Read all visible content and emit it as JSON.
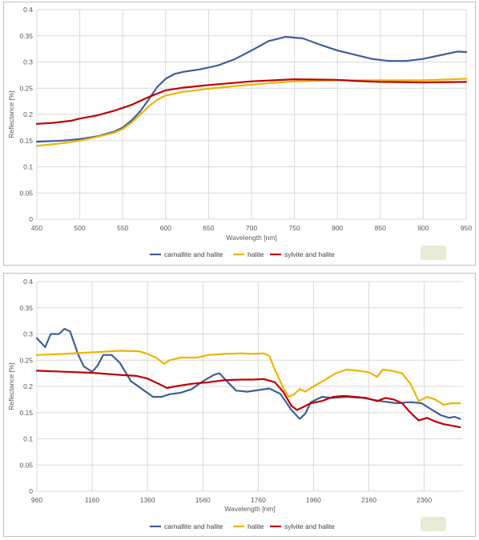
{
  "chart_data": [
    {
      "type": "line",
      "title": "",
      "xlabel": "Wavelength [nm]",
      "ylabel": "Reflectance [%]",
      "xlim": [
        450,
        950
      ],
      "ylim": [
        0,
        0.4
      ],
      "x_ticks": [
        "450",
        "500",
        "550",
        "600",
        "650",
        "700",
        "750",
        "800",
        "850",
        "900",
        "950"
      ],
      "y_ticks": [
        "0",
        "0.05",
        "0.1",
        "0.15",
        "0.2",
        "0.25",
        "0.3",
        "0.35",
        "0.4"
      ],
      "grid": true,
      "legend_position": "bottom",
      "series": [
        {
          "name": "carnallite and halite",
          "color": "#3f5f9a",
          "points": [
            [
              450,
              0.148
            ],
            [
              480,
              0.15
            ],
            [
              500,
              0.153
            ],
            [
              520,
              0.158
            ],
            [
              540,
              0.167
            ],
            [
              550,
              0.175
            ],
            [
              560,
              0.188
            ],
            [
              570,
              0.205
            ],
            [
              580,
              0.228
            ],
            [
              590,
              0.252
            ],
            [
              600,
              0.268
            ],
            [
              610,
              0.277
            ],
            [
              620,
              0.281
            ],
            [
              640,
              0.286
            ],
            [
              660,
              0.293
            ],
            [
              680,
              0.305
            ],
            [
              700,
              0.322
            ],
            [
              720,
              0.34
            ],
            [
              740,
              0.348
            ],
            [
              760,
              0.345
            ],
            [
              780,
              0.333
            ],
            [
              800,
              0.322
            ],
            [
              820,
              0.314
            ],
            [
              840,
              0.306
            ],
            [
              860,
              0.302
            ],
            [
              880,
              0.302
            ],
            [
              900,
              0.306
            ],
            [
              920,
              0.313
            ],
            [
              940,
              0.32
            ],
            [
              950,
              0.319
            ]
          ]
        },
        {
          "name": "halite",
          "color": "#f0b400",
          "points": [
            [
              450,
              0.14
            ],
            [
              480,
              0.145
            ],
            [
              500,
              0.15
            ],
            [
              520,
              0.157
            ],
            [
              540,
              0.165
            ],
            [
              550,
              0.172
            ],
            [
              560,
              0.184
            ],
            [
              570,
              0.199
            ],
            [
              580,
              0.215
            ],
            [
              590,
              0.228
            ],
            [
              600,
              0.236
            ],
            [
              620,
              0.243
            ],
            [
              650,
              0.249
            ],
            [
              700,
              0.257
            ],
            [
              750,
              0.263
            ],
            [
              800,
              0.265
            ],
            [
              850,
              0.265
            ],
            [
              900,
              0.265
            ],
            [
              950,
              0.268
            ]
          ]
        },
        {
          "name": "sylvite and halite",
          "color": "#c00000",
          "points": [
            [
              450,
              0.182
            ],
            [
              470,
              0.184
            ],
            [
              490,
              0.188
            ],
            [
              500,
              0.192
            ],
            [
              520,
              0.198
            ],
            [
              540,
              0.207
            ],
            [
              560,
              0.218
            ],
            [
              580,
              0.233
            ],
            [
              600,
              0.246
            ],
            [
              620,
              0.251
            ],
            [
              650,
              0.256
            ],
            [
              700,
              0.263
            ],
            [
              750,
              0.267
            ],
            [
              800,
              0.266
            ],
            [
              820,
              0.264
            ],
            [
              850,
              0.262
            ],
            [
              900,
              0.261
            ],
            [
              950,
              0.262
            ]
          ]
        }
      ]
    },
    {
      "type": "line",
      "title": "",
      "xlabel": "Wavelength [nm]",
      "ylabel": "Reflectance [%]",
      "xlim": [
        960,
        2500
      ],
      "ylim": [
        0,
        0.4
      ],
      "x_ticks": [
        "960",
        "1160",
        "1360",
        "1560",
        "1760",
        "1960",
        "2160",
        "2360"
      ],
      "y_ticks": [
        "0",
        "0.05",
        "0.1",
        "0.15",
        "0.2",
        "0.25",
        "0.3",
        "0.35",
        "0.4"
      ],
      "grid": true,
      "legend_position": "bottom",
      "series": [
        {
          "name": "carnallite and halite",
          "color": "#3f5f9a",
          "points": [
            [
              960,
              0.292
            ],
            [
              990,
              0.275
            ],
            [
              1010,
              0.3
            ],
            [
              1040,
              0.3
            ],
            [
              1060,
              0.31
            ],
            [
              1080,
              0.305
            ],
            [
              1110,
              0.26
            ],
            [
              1130,
              0.238
            ],
            [
              1160,
              0.228
            ],
            [
              1180,
              0.24
            ],
            [
              1200,
              0.26
            ],
            [
              1230,
              0.26
            ],
            [
              1260,
              0.245
            ],
            [
              1300,
              0.21
            ],
            [
              1340,
              0.195
            ],
            [
              1380,
              0.18
            ],
            [
              1410,
              0.18
            ],
            [
              1440,
              0.185
            ],
            [
              1480,
              0.188
            ],
            [
              1520,
              0.195
            ],
            [
              1560,
              0.21
            ],
            [
              1600,
              0.222
            ],
            [
              1620,
              0.225
            ],
            [
              1650,
              0.208
            ],
            [
              1680,
              0.192
            ],
            [
              1720,
              0.19
            ],
            [
              1760,
              0.193
            ],
            [
              1800,
              0.196
            ],
            [
              1840,
              0.186
            ],
            [
              1880,
              0.155
            ],
            [
              1910,
              0.138
            ],
            [
              1930,
              0.148
            ],
            [
              1950,
              0.17
            ],
            [
              1990,
              0.18
            ],
            [
              2030,
              0.178
            ],
            [
              2080,
              0.18
            ],
            [
              2140,
              0.178
            ],
            [
              2200,
              0.172
            ],
            [
              2260,
              0.168
            ],
            [
              2310,
              0.17
            ],
            [
              2350,
              0.168
            ],
            [
              2380,
              0.158
            ],
            [
              2420,
              0.145
            ],
            [
              2450,
              0.14
            ],
            [
              2470,
              0.142
            ],
            [
              2490,
              0.138
            ]
          ]
        },
        {
          "name": "halite",
          "color": "#f0b400",
          "points": [
            [
              960,
              0.26
            ],
            [
              1060,
              0.262
            ],
            [
              1160,
              0.265
            ],
            [
              1260,
              0.268
            ],
            [
              1330,
              0.267
            ],
            [
              1360,
              0.262
            ],
            [
              1390,
              0.255
            ],
            [
              1420,
              0.243
            ],
            [
              1440,
              0.25
            ],
            [
              1480,
              0.255
            ],
            [
              1540,
              0.255
            ],
            [
              1580,
              0.26
            ],
            [
              1640,
              0.262
            ],
            [
              1700,
              0.263
            ],
            [
              1740,
              0.262
            ],
            [
              1780,
              0.263
            ],
            [
              1800,
              0.258
            ],
            [
              1820,
              0.232
            ],
            [
              1850,
              0.198
            ],
            [
              1870,
              0.18
            ],
            [
              1890,
              0.185
            ],
            [
              1910,
              0.195
            ],
            [
              1930,
              0.19
            ],
            [
              1960,
              0.2
            ],
            [
              2000,
              0.212
            ],
            [
              2040,
              0.225
            ],
            [
              2080,
              0.232
            ],
            [
              2120,
              0.23
            ],
            [
              2160,
              0.227
            ],
            [
              2190,
              0.218
            ],
            [
              2210,
              0.232
            ],
            [
              2240,
              0.23
            ],
            [
              2280,
              0.225
            ],
            [
              2310,
              0.205
            ],
            [
              2340,
              0.172
            ],
            [
              2370,
              0.18
            ],
            [
              2400,
              0.175
            ],
            [
              2430,
              0.165
            ],
            [
              2460,
              0.168
            ],
            [
              2490,
              0.168
            ]
          ]
        },
        {
          "name": "sylvite and halite",
          "color": "#c00000",
          "points": [
            [
              960,
              0.23
            ],
            [
              1060,
              0.228
            ],
            [
              1160,
              0.226
            ],
            [
              1260,
              0.222
            ],
            [
              1320,
              0.22
            ],
            [
              1360,
              0.215
            ],
            [
              1400,
              0.205
            ],
            [
              1430,
              0.197
            ],
            [
              1460,
              0.2
            ],
            [
              1520,
              0.205
            ],
            [
              1580,
              0.208
            ],
            [
              1640,
              0.212
            ],
            [
              1700,
              0.213
            ],
            [
              1740,
              0.213
            ],
            [
              1780,
              0.214
            ],
            [
              1820,
              0.208
            ],
            [
              1850,
              0.19
            ],
            [
              1880,
              0.163
            ],
            [
              1900,
              0.155
            ],
            [
              1920,
              0.16
            ],
            [
              1950,
              0.168
            ],
            [
              1990,
              0.172
            ],
            [
              2030,
              0.18
            ],
            [
              2070,
              0.182
            ],
            [
              2110,
              0.18
            ],
            [
              2150,
              0.178
            ],
            [
              2190,
              0.172
            ],
            [
              2220,
              0.178
            ],
            [
              2250,
              0.175
            ],
            [
              2280,
              0.168
            ],
            [
              2310,
              0.15
            ],
            [
              2340,
              0.135
            ],
            [
              2370,
              0.14
            ],
            [
              2400,
              0.133
            ],
            [
              2430,
              0.128
            ],
            [
              2460,
              0.125
            ],
            [
              2490,
              0.122
            ]
          ]
        }
      ]
    }
  ]
}
